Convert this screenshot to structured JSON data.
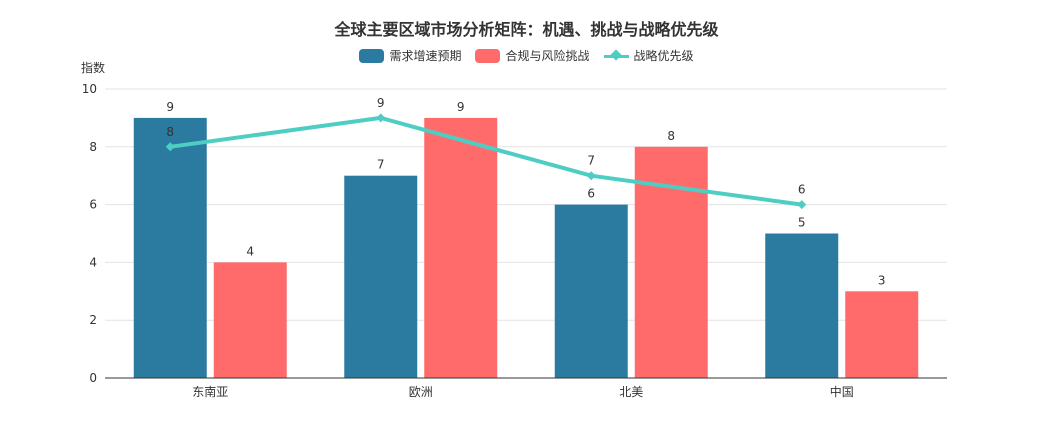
{
  "chart_data": {
    "type": "bar",
    "title": "全球主要区域市场分析矩阵：机遇、挑战与战略优先级",
    "ylabel": "指数",
    "xlabel": "",
    "ylim": [
      0,
      10
    ],
    "yticks": [
      0,
      2,
      4,
      6,
      8,
      10
    ],
    "grid": true,
    "legend_position": "top-center",
    "categories": [
      "东南亚",
      "欧洲",
      "北美",
      "中国"
    ],
    "series": [
      {
        "name": "需求增速预期",
        "type": "bar",
        "color": "#2b7ba0",
        "values": [
          9,
          7,
          6,
          5
        ]
      },
      {
        "name": "合规与风险挑战",
        "type": "bar",
        "color": "#ff6b6b",
        "values": [
          4,
          9,
          8,
          3
        ]
      },
      {
        "name": "战略优先级",
        "type": "line",
        "color": "#4ecdc4",
        "values": [
          8,
          9,
          7,
          6
        ]
      }
    ]
  }
}
